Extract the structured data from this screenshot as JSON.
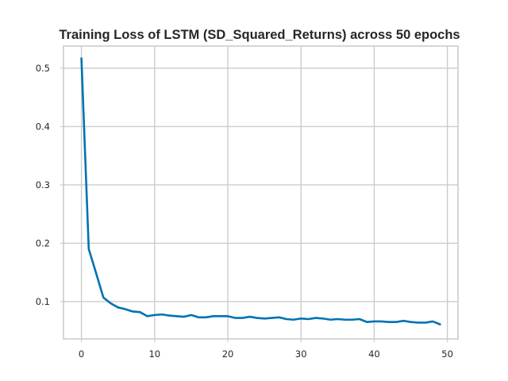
{
  "chart_data": {
    "type": "line",
    "title": "Training Loss of LSTM (SD_Squared_Returns) across 50 epochs",
    "xlabel": "",
    "ylabel": "",
    "xlim": [
      -2.45,
      51.45
    ],
    "ylim": [
      0.036,
      0.538
    ],
    "xticks": [
      0,
      10,
      20,
      30,
      40,
      50
    ],
    "yticks": [
      0.1,
      0.2,
      0.3,
      0.4,
      0.5
    ],
    "grid": true,
    "legend": "none",
    "colors": {
      "line": "#0072b2",
      "grid": "#cccccc",
      "text": "#262626"
    },
    "series": [
      {
        "x": [
          0,
          1,
          2,
          3,
          4,
          5,
          6,
          7,
          8,
          9,
          10,
          11,
          12,
          13,
          14,
          15,
          16,
          17,
          18,
          19,
          20,
          21,
          22,
          23,
          24,
          25,
          26,
          27,
          28,
          29,
          30,
          31,
          32,
          33,
          34,
          35,
          36,
          37,
          38,
          39,
          40,
          41,
          42,
          43,
          44,
          45,
          46,
          47,
          48,
          49
        ],
        "values": [
          0.517,
          0.19,
          0.149,
          0.107,
          0.097,
          0.09,
          0.087,
          0.083,
          0.082,
          0.075,
          0.077,
          0.078,
          0.076,
          0.075,
          0.074,
          0.077,
          0.073,
          0.073,
          0.075,
          0.075,
          0.075,
          0.072,
          0.072,
          0.074,
          0.072,
          0.071,
          0.072,
          0.073,
          0.07,
          0.069,
          0.071,
          0.07,
          0.072,
          0.071,
          0.069,
          0.07,
          0.069,
          0.069,
          0.07,
          0.065,
          0.066,
          0.066,
          0.065,
          0.065,
          0.067,
          0.065,
          0.064,
          0.064,
          0.066,
          0.061
        ]
      }
    ]
  }
}
